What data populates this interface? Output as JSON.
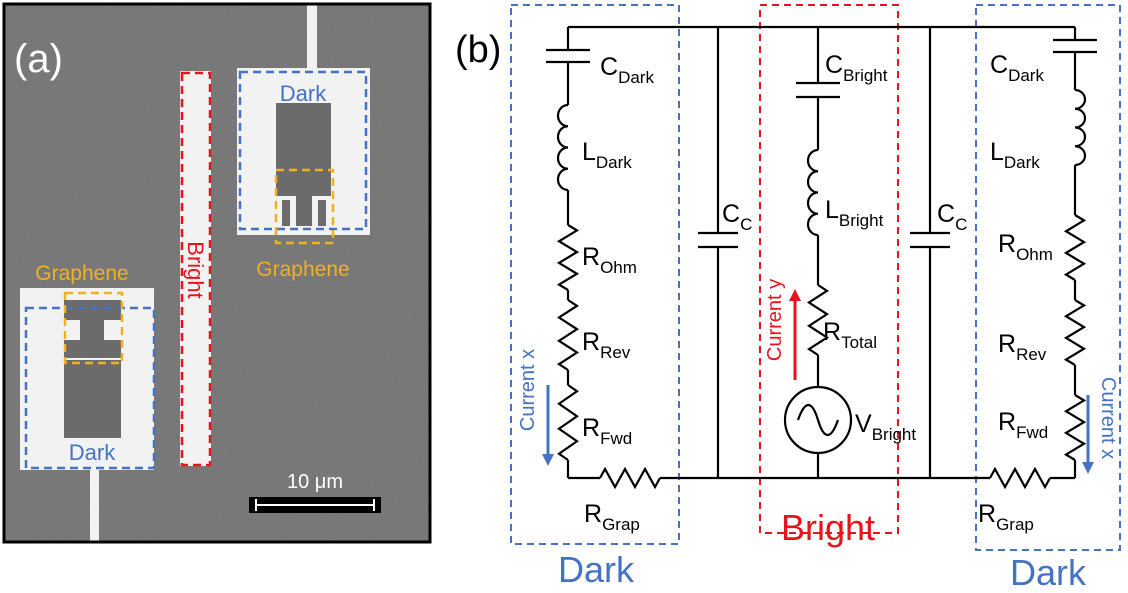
{
  "panel_a": {
    "label": "(a)",
    "dark_upper": "Dark",
    "bright": "Bright",
    "graphene_upper": "Graphene",
    "graphene_lower": "Graphene",
    "dark_lower": "Dark",
    "scale_bar": "10 μm"
  },
  "panel_b": {
    "label": "(b)",
    "components": [
      {
        "main": "C",
        "sub": "Dark"
      },
      {
        "main": "L",
        "sub": "Dark"
      },
      {
        "main": "R",
        "sub": "Ohm"
      },
      {
        "main": "R",
        "sub": "Rev"
      },
      {
        "main": "R",
        "sub": "Fwd"
      },
      {
        "main": "R",
        "sub": "Grap"
      },
      {
        "main": "C",
        "sub": "C"
      },
      {
        "main": "C",
        "sub": "Bright"
      },
      {
        "main": "L",
        "sub": "Bright"
      },
      {
        "main": "R",
        "sub": "Total"
      },
      {
        "main": "V",
        "sub": "Bright"
      },
      {
        "main": "C",
        "sub": "C"
      },
      {
        "main": "C",
        "sub": "Dark"
      },
      {
        "main": "L",
        "sub": "Dark"
      },
      {
        "main": "R",
        "sub": "Ohm"
      },
      {
        "main": "R",
        "sub": "Rev"
      },
      {
        "main": "R",
        "sub": "Fwd"
      },
      {
        "main": "R",
        "sub": "Grap"
      }
    ],
    "currents": [
      "Current x",
      "Current y",
      "Current x"
    ],
    "regions": [
      "Dark",
      "Bright",
      "Dark"
    ]
  }
}
